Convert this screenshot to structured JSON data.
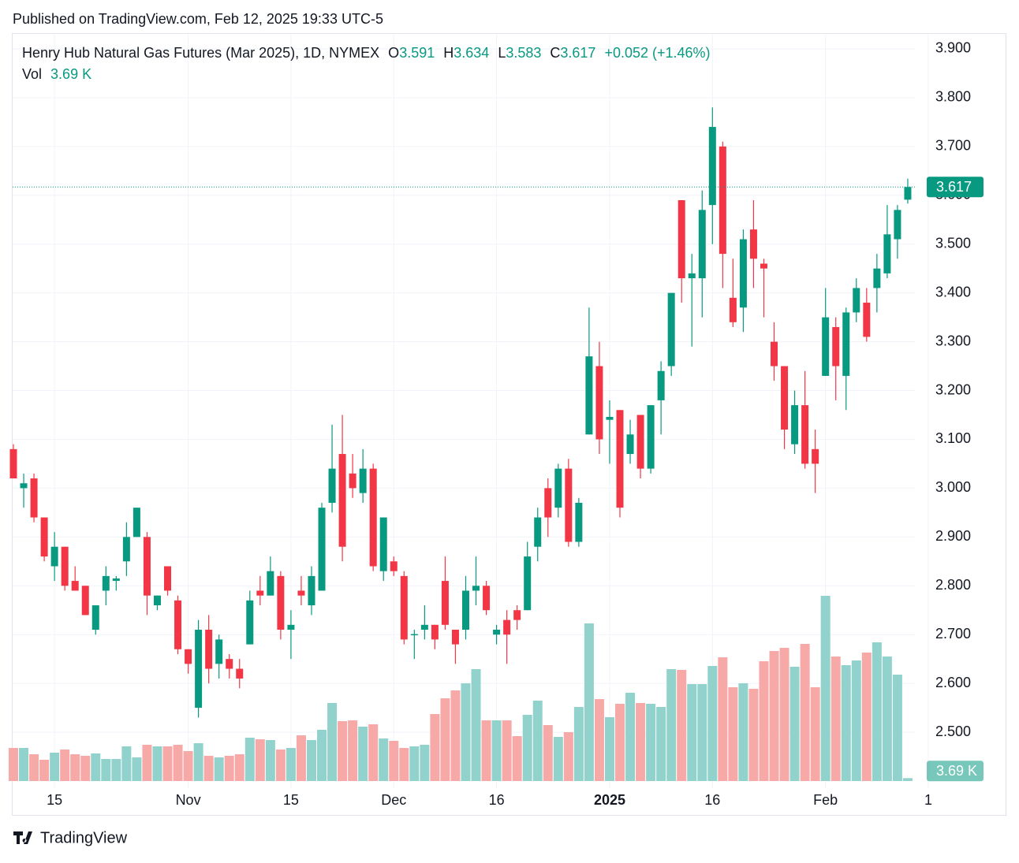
{
  "header": {
    "published": "Published on TradingView.com, Feb 12, 2025 19:33 UTC-5"
  },
  "footer": {
    "brand": "TradingView"
  },
  "chart_data": {
    "type": "candlestick",
    "title": "Henry Hub Natural Gas Futures (Mar 2025), 1D, NYMEX",
    "ohlc_letters": [
      "O",
      "H",
      "L",
      "C"
    ],
    "change_label": "+0.052 (+1.46%)",
    "volume_name": "Vol",
    "up_color": "#089981",
    "down_color": "#f23645",
    "volume_up_color": "#92d2cc",
    "volume_down_color": "#f7a9a7",
    "grid": true,
    "categories": [
      null,
      null,
      null,
      null,
      "15",
      null,
      null,
      null,
      null,
      null,
      null,
      null,
      null,
      null,
      null,
      null,
      null,
      "Nov",
      null,
      null,
      null,
      null,
      null,
      null,
      null,
      null,
      null,
      "15",
      null,
      null,
      null,
      null,
      null,
      null,
      null,
      null,
      null,
      "Dec",
      null,
      null,
      null,
      null,
      null,
      null,
      null,
      null,
      null,
      "16",
      null,
      null,
      null,
      null,
      null,
      null,
      null,
      null,
      null,
      null,
      "2025",
      null,
      null,
      null,
      null,
      null,
      null,
      null,
      null,
      null,
      "16",
      null,
      null,
      null,
      null,
      null,
      null,
      null,
      null,
      null,
      null,
      "Feb",
      null,
      null,
      null,
      null,
      null,
      null,
      null,
      null,
      null,
      "1"
    ],
    "open": [
      3.08,
      3.0,
      3.02,
      2.94,
      2.84,
      2.88,
      2.81,
      2.8,
      2.71,
      2.79,
      2.81,
      2.85,
      2.9,
      2.9,
      2.76,
      2.84,
      2.77,
      2.67,
      2.55,
      2.71,
      2.64,
      2.65,
      2.63,
      2.68,
      2.79,
      2.78,
      2.82,
      2.71,
      2.79,
      2.76,
      2.79,
      2.97,
      3.07,
      3.03,
      2.99,
      3.04,
      2.83,
      2.85,
      2.82,
      2.7,
      2.71,
      2.72,
      2.81,
      2.71,
      2.71,
      2.79,
      2.8,
      2.7,
      2.73,
      2.75,
      2.75,
      2.88,
      3.0,
      2.96,
      3.04,
      2.89,
      3.11,
      3.25,
      3.14,
      3.16,
      3.07,
      3.15,
      3.04,
      3.18,
      3.25,
      3.59,
      3.43,
      3.43,
      3.58,
      3.7,
      3.39,
      3.37,
      3.53,
      3.46,
      3.3,
      3.25,
      3.09,
      3.17,
      3.08,
      3.23,
      3.33,
      3.23,
      3.36,
      3.38,
      3.41,
      3.44,
      3.51,
      3.591,
      null,
      null
    ],
    "high": [
      3.09,
      3.03,
      3.03,
      2.94,
      2.91,
      2.88,
      2.84,
      2.8,
      2.76,
      2.84,
      2.82,
      2.93,
      2.96,
      2.91,
      2.78,
      2.84,
      2.78,
      2.67,
      2.73,
      2.74,
      2.7,
      2.66,
      2.65,
      2.79,
      2.82,
      2.86,
      2.83,
      2.75,
      2.82,
      2.84,
      2.97,
      3.13,
      3.15,
      3.07,
      3.08,
      3.05,
      2.94,
      2.86,
      2.83,
      2.71,
      2.76,
      2.72,
      2.86,
      2.71,
      2.82,
      2.86,
      2.81,
      2.72,
      2.75,
      2.76,
      2.89,
      2.96,
      3.02,
      3.05,
      3.06,
      2.98,
      3.37,
      3.3,
      3.18,
      3.16,
      3.14,
      3.15,
      3.17,
      3.26,
      3.4,
      3.59,
      3.48,
      3.61,
      3.78,
      3.71,
      3.47,
      3.53,
      3.59,
      3.47,
      3.34,
      3.25,
      3.2,
      3.24,
      3.12,
      3.41,
      3.35,
      3.37,
      3.43,
      3.41,
      3.48,
      3.58,
      3.58,
      3.634,
      null,
      null
    ],
    "low": [
      3.02,
      2.96,
      2.93,
      2.85,
      2.81,
      2.79,
      2.79,
      2.74,
      2.7,
      2.76,
      2.79,
      2.82,
      2.9,
      2.74,
      2.75,
      2.78,
      2.66,
      2.62,
      2.53,
      2.6,
      2.61,
      2.61,
      2.59,
      2.68,
      2.76,
      2.78,
      2.69,
      2.65,
      2.76,
      2.74,
      2.79,
      2.95,
      2.85,
      2.98,
      2.97,
      2.83,
      2.81,
      2.82,
      2.68,
      2.65,
      2.69,
      2.67,
      2.71,
      2.64,
      2.69,
      2.76,
      2.74,
      2.68,
      2.64,
      2.71,
      2.75,
      2.85,
      2.9,
      2.94,
      2.88,
      2.88,
      3.11,
      3.07,
      3.05,
      2.94,
      3.05,
      3.02,
      3.03,
      3.11,
      3.23,
      3.38,
      3.29,
      3.35,
      3.5,
      3.41,
      3.33,
      3.32,
      3.41,
      3.35,
      3.22,
      3.08,
      3.07,
      3.04,
      2.99,
      3.23,
      3.18,
      3.16,
      3.34,
      3.3,
      3.36,
      3.43,
      3.47,
      3.583,
      null,
      null
    ],
    "close": [
      3.02,
      3.01,
      2.94,
      2.86,
      2.88,
      2.8,
      2.79,
      2.74,
      2.76,
      2.82,
      2.815,
      2.9,
      2.96,
      2.78,
      2.78,
      2.79,
      2.67,
      2.64,
      2.71,
      2.63,
      2.69,
      2.63,
      2.61,
      2.77,
      2.78,
      2.83,
      2.71,
      2.72,
      2.78,
      2.82,
      2.96,
      3.04,
      2.88,
      3.0,
      3.04,
      2.84,
      2.94,
      2.83,
      2.69,
      2.701,
      2.72,
      2.69,
      2.72,
      2.68,
      2.79,
      2.8,
      2.75,
      2.71,
      2.7,
      2.73,
      2.86,
      2.94,
      2.94,
      3.04,
      2.89,
      2.97,
      3.27,
      3.1,
      3.146,
      2.96,
      3.11,
      3.04,
      3.17,
      3.24,
      3.4,
      3.43,
      3.44,
      3.57,
      3.74,
      3.48,
      3.34,
      3.51,
      3.47,
      3.45,
      3.25,
      3.12,
      3.17,
      3.05,
      3.05,
      3.35,
      3.25,
      3.36,
      3.41,
      3.31,
      3.45,
      3.52,
      3.57,
      3.617,
      null,
      null
    ],
    "volume": [
      42000,
      42000,
      34000,
      27000,
      36000,
      40000,
      34000,
      32000,
      35000,
      28000,
      28000,
      44000,
      30000,
      46000,
      44000,
      44000,
      46000,
      38000,
      48000,
      32000,
      30000,
      32000,
      34000,
      55000,
      53000,
      52000,
      40000,
      42000,
      58000,
      52000,
      65000,
      99000,
      76000,
      77000,
      69000,
      72000,
      54000,
      51000,
      42000,
      44000,
      46000,
      85000,
      105000,
      115000,
      124000,
      142000,
      77000,
      77000,
      77000,
      57000,
      84000,
      102000,
      71000,
      56000,
      62000,
      94000,
      200000,
      104000,
      81000,
      98000,
      112000,
      99000,
      98000,
      94000,
      142000,
      141000,
      123000,
      123000,
      146000,
      157000,
      119000,
      124000,
      117000,
      152000,
      165000,
      169000,
      145000,
      174000,
      119000,
      235000,
      158000,
      147000,
      153000,
      163000,
      176000,
      158000,
      135000,
      3690,
      null,
      null
    ],
    "volume_labels": [
      null,
      null,
      null,
      null,
      null,
      null,
      null,
      null,
      null,
      null,
      null,
      null,
      null,
      null,
      null,
      null,
      null,
      null,
      null,
      null,
      null,
      null,
      null,
      null,
      null,
      null,
      null,
      null,
      null,
      null,
      null,
      null,
      null,
      null,
      null,
      null,
      null,
      null,
      null,
      null,
      null,
      null,
      null,
      null,
      null,
      null,
      null,
      null,
      null,
      null,
      null,
      null,
      null,
      null,
      null,
      null,
      null,
      null,
      null,
      null,
      null,
      null,
      null,
      null,
      null,
      null,
      null,
      null,
      null,
      null,
      null,
      null,
      null,
      null,
      null,
      null,
      null,
      null,
      null,
      null,
      null,
      null,
      null,
      null,
      null,
      null,
      null,
      "3.69 K",
      null,
      null
    ],
    "ylim": [
      2.4,
      3.93
    ],
    "yticks": [
      {
        "value": 2.5,
        "label": "2.500"
      },
      {
        "value": 2.6,
        "label": "2.600"
      },
      {
        "value": 2.7,
        "label": "2.700"
      },
      {
        "value": 2.8,
        "label": "2.800"
      },
      {
        "value": 2.9,
        "label": "2.900"
      },
      {
        "value": 3.0,
        "label": "3.000"
      },
      {
        "value": 3.1,
        "label": "3.100"
      },
      {
        "value": 3.2,
        "label": "3.200"
      },
      {
        "value": 3.3,
        "label": "3.300"
      },
      {
        "value": 3.4,
        "label": "3.400"
      },
      {
        "value": 3.5,
        "label": "3.500"
      },
      {
        "value": 3.6,
        "label": "3.600"
      },
      {
        "value": 3.7,
        "label": "3.700"
      },
      {
        "value": 3.8,
        "label": "3.800"
      },
      {
        "value": 3.9,
        "label": "3.900"
      }
    ],
    "vlim": [
      0,
      260000
    ]
  }
}
